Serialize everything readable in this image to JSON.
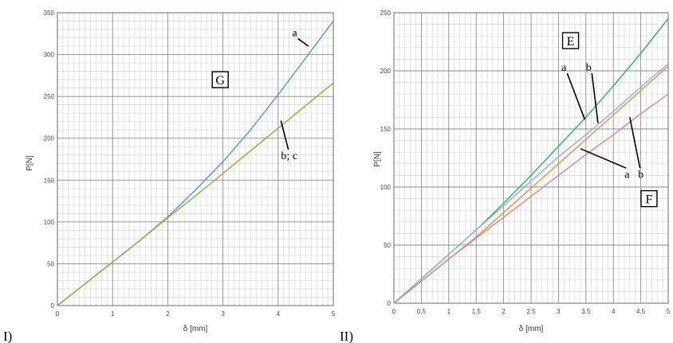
{
  "chart_data": [
    {
      "type": "line",
      "panel_label": "I)",
      "xlabel": "δ [mm]",
      "ylabel": "P[N]",
      "xlim": [
        0,
        5
      ],
      "ylim": [
        0,
        350
      ],
      "xticks": [
        0,
        1,
        2,
        3,
        4,
        5
      ],
      "xtick_labels": [
        "0",
        "1",
        "2",
        "3",
        "4",
        "5"
      ],
      "yticks": [
        0,
        50,
        100,
        150,
        200,
        250,
        300,
        350
      ],
      "ytick_labels": [
        "0",
        "50",
        "100",
        "150",
        "200",
        "250",
        "300",
        "350"
      ],
      "grid": true,
      "series": [
        {
          "color": "#5b9bd5",
          "x": [
            0,
            0.5,
            1,
            1.5,
            2,
            2.5,
            3,
            3.5,
            4,
            4.5,
            5
          ],
          "y": [
            0,
            26,
            52,
            78,
            106,
            138,
            172,
            210,
            252,
            296,
            340
          ]
        },
        {
          "color": "#9bad3a",
          "x": [
            0,
            0.5,
            1,
            1.5,
            2,
            2.5,
            3,
            3.5,
            4,
            4.5,
            5
          ],
          "y": [
            0,
            26,
            52,
            78,
            105,
            131,
            158,
            185,
            212,
            239,
            266
          ]
        }
      ],
      "annotations": [
        {
          "text": "a",
          "x": 4.3,
          "y": 322,
          "arrow_to": [
            4.55,
            310
          ]
        },
        {
          "text": "b; c",
          "x": 4.2,
          "y": 175,
          "arrow_to": [
            4.05,
            221
          ]
        }
      ],
      "boxed_label": {
        "text": "G",
        "x": 2.95,
        "y": 270
      }
    },
    {
      "type": "line",
      "panel_label": "II)",
      "xlabel": "δ [mm]",
      "ylabel": "P[N]",
      "xlim": [
        0,
        5
      ],
      "ylim": [
        0,
        250
      ],
      "xticks": [
        0,
        0.5,
        1,
        1.5,
        2,
        2.5,
        3,
        3.5,
        4,
        4.5,
        5
      ],
      "xtick_labels": [
        "0",
        "0.5",
        "1",
        "1.5",
        "2",
        "2.5",
        "3",
        "3.5",
        "4",
        "4.5",
        "5"
      ],
      "yticks": [
        0,
        50,
        100,
        150,
        200,
        250
      ],
      "ytick_labels": [
        "0",
        "50",
        "100",
        "150",
        "200",
        "250"
      ],
      "grid": true,
      "series": [
        {
          "color": "#2fb36a",
          "x": [
            0,
            0.5,
            1,
            1.5,
            2,
            2.5,
            3,
            3.5,
            4,
            4.5,
            5
          ],
          "y": [
            0,
            21,
            42,
            63,
            86,
            110,
            135,
            160,
            187,
            215,
            245
          ]
        },
        {
          "color": "#8fb3d9",
          "x": [
            0,
            0.5,
            1,
            1.5,
            2,
            2.5,
            3,
            3.5,
            4,
            4.5,
            5
          ],
          "y": [
            0,
            21,
            42,
            63,
            84,
            105,
            126,
            145,
            165,
            186,
            206
          ]
        },
        {
          "color": "#e8924a",
          "x": [
            0,
            0.5,
            1,
            1.5,
            2,
            2.5,
            3,
            3.5,
            4,
            4.5,
            5
          ],
          "y": [
            0,
            19,
            38,
            57,
            78,
            99,
            120,
            141,
            162,
            183,
            204
          ]
        },
        {
          "color": "#d98a8a",
          "x": [
            0,
            0.5,
            1,
            1.5,
            2,
            2.5,
            3,
            3.5,
            4,
            4.5,
            5
          ],
          "y": [
            0,
            19,
            38,
            56,
            74,
            92,
            110,
            128,
            145,
            163,
            180
          ]
        }
      ],
      "annotations": [
        {
          "text": "a",
          "x": 3.1,
          "y": 200,
          "arrow_to": [
            3.48,
            158
          ]
        },
        {
          "text": "b",
          "x": 3.55,
          "y": 200,
          "arrow_to": [
            3.72,
            155
          ]
        },
        {
          "text": "a",
          "x": 4.25,
          "y": 108,
          "arrow_to": [
            3.4,
            133
          ]
        },
        {
          "text": "b",
          "x": 4.5,
          "y": 108,
          "arrow_to": [
            4.3,
            160
          ]
        }
      ],
      "boxed_labels": [
        {
          "text": "E",
          "x": 3.22,
          "y": 226
        },
        {
          "text": "F",
          "x": 4.65,
          "y": 90
        }
      ]
    }
  ]
}
